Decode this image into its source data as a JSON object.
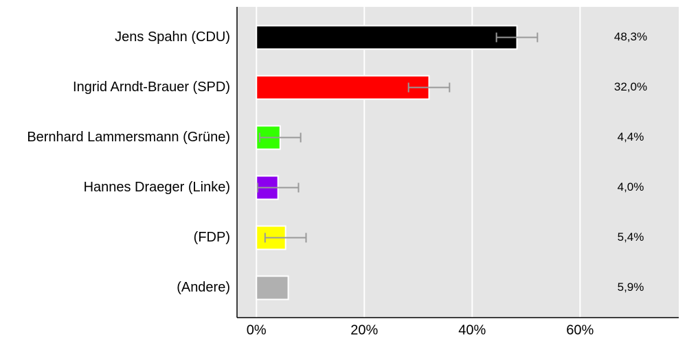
{
  "chart_data": {
    "type": "bar",
    "orientation": "horizontal",
    "categories": [
      "Jens Spahn (CDU)",
      "Ingrid Arndt-Brauer (SPD)",
      "Bernhard Lammersmann (Grüne)",
      "Hannes Draeger (Linke)",
      "(FDP)",
      "(Andere)"
    ],
    "values": [
      48.3,
      32.0,
      4.4,
      4.0,
      5.4,
      5.9
    ],
    "value_labels": [
      "48,3%",
      "32,0%",
      "4,4%",
      "4,0%",
      "5,4%",
      "5,9%"
    ],
    "errors": [
      3.8,
      3.8,
      3.8,
      3.8,
      3.8,
      null
    ],
    "colors": [
      "#000000",
      "#ff0000",
      "#33ff00",
      "#8b00ee",
      "#ffff00",
      "#b0b0b0"
    ],
    "xlim": [
      -3.6,
      78.3
    ],
    "xticks": [
      {
        "value": 0,
        "label": "0%"
      },
      {
        "value": 20,
        "label": "20%"
      },
      {
        "value": 40,
        "label": "40%"
      },
      {
        "value": 60,
        "label": "60%"
      }
    ],
    "grid": true
  }
}
